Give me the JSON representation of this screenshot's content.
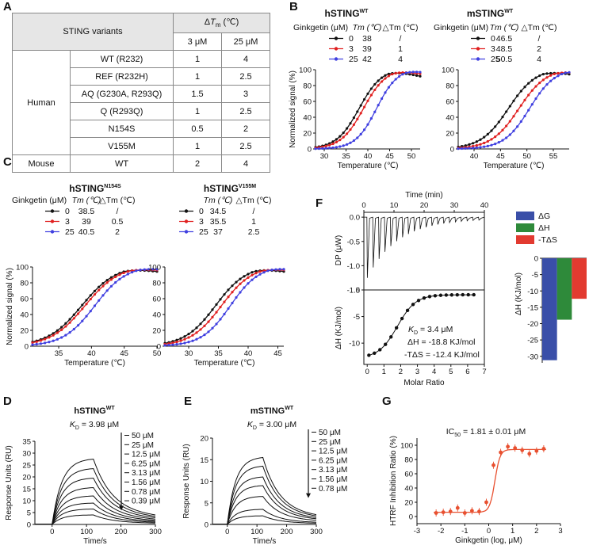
{
  "panels": {
    "A": "A",
    "B": "B",
    "C": "C",
    "D": "D",
    "E": "E",
    "F": "F",
    "G": "G"
  },
  "table": {
    "header_variant": "STING variants",
    "header_delta": "ΔTm (℃)",
    "conc": [
      "3 μM",
      "25 μM"
    ],
    "groups": [
      {
        "species": "Human",
        "rows": [
          {
            "variant": "WT (R232)",
            "v3": "1",
            "v25": "4"
          },
          {
            "variant": "REF (R232H)",
            "v3": "1",
            "v25": "2.5"
          },
          {
            "variant": "AQ (G230A, R293Q)",
            "v3": "1.5",
            "v25": "3"
          },
          {
            "variant": "Q (R293Q)",
            "v3": "1",
            "v25": "2.5"
          },
          {
            "variant": "N154S",
            "v3": "0.5",
            "v25": "2"
          },
          {
            "variant": "V155M",
            "v3": "1",
            "v25": "2.5"
          }
        ]
      },
      {
        "species": "Mouse",
        "rows": [
          {
            "variant": "WT",
            "v3": "2",
            "v25": "4"
          }
        ]
      }
    ]
  },
  "colors": {
    "c0": "#111111",
    "c3": "#e02020",
    "c25": "#4040e0",
    "dg": "#3a4fa8",
    "dh": "#2e8a3a",
    "tds": "#e23a30",
    "fit": "#e85030"
  },
  "tsa_legend": {
    "ligand_label": "Ginkgetin (μM)",
    "tm_label": "Tm (℃)",
    "dtm_label": "△Tm (℃)",
    "conc": [
      "0",
      "3",
      "25"
    ]
  },
  "chart_data": [
    {
      "id": "B1",
      "type": "line",
      "title": "hSTING",
      "title_sup": "WT",
      "xlabel": "Temperature (℃)",
      "ylabel": "Normalized signal (%)",
      "xlim": [
        28,
        52
      ],
      "ylim": [
        0,
        100
      ],
      "xticks": [
        30,
        35,
        40,
        45,
        50
      ],
      "yticks": [
        0,
        20,
        40,
        60,
        80,
        100
      ],
      "series": [
        {
          "name": "0",
          "tm": "38",
          "dtm": "/",
          "tmv": 38
        },
        {
          "name": "3",
          "tm": "39",
          "dtm": "1",
          "tmv": 39
        },
        {
          "name": "25",
          "tm": "42",
          "dtm": "4",
          "tmv": 42
        }
      ]
    },
    {
      "id": "B2",
      "type": "line",
      "title": "mSTING",
      "title_sup": "WT",
      "xlabel": "Temperature (℃)",
      "xlim": [
        37,
        58
      ],
      "ylim": [
        0,
        100
      ],
      "xticks": [
        40,
        45,
        50,
        55
      ],
      "yticks": [
        0,
        20,
        40,
        60,
        80,
        100
      ],
      "series": [
        {
          "name": "0",
          "tm": "46.5",
          "dtm": "/",
          "tmv": 46.5
        },
        {
          "name": "3",
          "tm": "48.5",
          "dtm": "2",
          "tmv": 48.5
        },
        {
          "name": "25",
          "tm": "50.5",
          "dtm": "4",
          "tmv": 50.5
        }
      ]
    },
    {
      "id": "C1",
      "type": "line",
      "title": "hSTING",
      "title_sup": "N154S",
      "xlabel": "Temperature (℃)",
      "ylabel": "Normalized signal (%)",
      "xlim": [
        31,
        50
      ],
      "ylim": [
        0,
        100
      ],
      "xticks": [
        35,
        40,
        45,
        50
      ],
      "yticks": [
        0,
        20,
        40,
        60,
        80,
        100
      ],
      "series": [
        {
          "name": "0",
          "tm": "38.5",
          "dtm": "/",
          "tmv": 38.5
        },
        {
          "name": "3",
          "tm": "39",
          "dtm": "0.5",
          "tmv": 39
        },
        {
          "name": "25",
          "tm": "40.5",
          "dtm": "2",
          "tmv": 40.5
        }
      ]
    },
    {
      "id": "C2",
      "type": "line",
      "title": "hSTING",
      "title_sup": "V155M",
      "xlabel": "Temperature (℃)",
      "xlim": [
        26,
        46
      ],
      "ylim": [
        0,
        100
      ],
      "xticks": [
        30,
        35,
        40,
        45
      ],
      "yticks": [
        0,
        20,
        40,
        60,
        80,
        100
      ],
      "series": [
        {
          "name": "0",
          "tm": "34.5",
          "dtm": "/",
          "tmv": 34.5
        },
        {
          "name": "3",
          "tm": "35.5",
          "dtm": "1",
          "tmv": 35.5
        },
        {
          "name": "25",
          "tm": "37",
          "dtm": "2.5",
          "tmv": 37
        }
      ]
    },
    {
      "id": "D",
      "type": "line",
      "title": "hSTING",
      "title_sup": "WT",
      "kd_label": "K",
      "kd_sub": "D",
      "kd_value": " = 3.98 μM",
      "xlabel": "Time/s",
      "ylabel": "Response Units (RU)",
      "xlim": [
        -50,
        300
      ],
      "ylim": [
        0,
        35
      ],
      "xticks": [
        0,
        100,
        200,
        300
      ],
      "yticks": [
        0,
        5,
        10,
        15,
        20,
        25,
        30,
        35
      ],
      "legend": [
        "50 μM",
        "25 μM",
        "12.5 μM",
        "6.25 μM",
        "3.13 μM",
        "1.56 μM",
        "0.78 μM",
        "0.39 μM"
      ],
      "peaks": [
        27.5,
        23.5,
        19.5,
        15.5,
        12,
        9,
        6.5,
        4
      ]
    },
    {
      "id": "E",
      "type": "line",
      "title": "mSTING",
      "title_sup": "WT",
      "kd_label": "K",
      "kd_sub": "D",
      "kd_value": " = 3.00 μM",
      "xlabel": "Time/s",
      "ylabel": "Response Units (RU)",
      "xlim": [
        -50,
        300
      ],
      "ylim": [
        0,
        20
      ],
      "xticks": [
        0,
        100,
        200,
        300
      ],
      "yticks": [
        0,
        5,
        10,
        15,
        20
      ],
      "legend": [
        "50 μM",
        "25 μM",
        "12.5 μM",
        "6.25 μM",
        "3.13 μM",
        "1.56 μM",
        "0.78 μM"
      ],
      "peaks": [
        15.5,
        13.5,
        11,
        9,
        6.5,
        3.5,
        2
      ]
    },
    {
      "id": "F_top",
      "type": "line",
      "xlabel": "Time (min)",
      "ylabel": "DP (μW)",
      "xlim": [
        0,
        40
      ],
      "ylim": [
        -1.5,
        0.1
      ],
      "xticks": [
        0,
        10,
        20,
        30,
        40
      ],
      "yticks": [
        0.0,
        -0.5,
        -1.0,
        -1.5
      ],
      "ytick_labels": [
        "0.0",
        "-0.5",
        "-1.0",
        "-1.5"
      ]
    },
    {
      "id": "F_bottom",
      "type": "scatter",
      "xlabel": "Molar Ratio",
      "ylabel": "ΔH (KJ/mol)",
      "xlim": [
        -0.2,
        7
      ],
      "ylim": [
        -14,
        0
      ],
      "xticks": [
        0,
        1,
        2,
        3,
        4,
        5,
        6,
        7
      ],
      "yticks": [
        0,
        -5,
        -10
      ],
      "annot": {
        "kd": "K",
        "kd_sub": "D",
        "kd_val": " = 3.4 μM",
        "dh": "ΔH = -18.8 KJ/mol",
        "tds": "-TΔS = -12.4 KJ/mol"
      }
    },
    {
      "id": "F_bar",
      "type": "bar",
      "ylabel": "ΔH (KJ/mol)",
      "categories": [
        "ΔG",
        "ΔH",
        "-TΔS"
      ],
      "values": [
        -31.2,
        -18.8,
        -12.4
      ],
      "ylim": [
        -32,
        0
      ],
      "yticks": [
        0,
        -5,
        -10,
        -15,
        -20,
        -25,
        -30
      ]
    },
    {
      "id": "G",
      "type": "scatter",
      "title": "IC",
      "title_sub": "50",
      "title_val": " = 1.81 ± 0.01 μM",
      "xlabel": "Ginkgetin (log, μM)",
      "ylabel": "HTRF Inhibition Ratio (%)",
      "xlim": [
        -3,
        3
      ],
      "ylim": [
        -10,
        110
      ],
      "xticks": [
        -3,
        -2,
        -1,
        0,
        1,
        2,
        3
      ],
      "yticks": [
        0,
        20,
        40,
        60,
        80,
        100
      ],
      "points": [
        [
          -2.2,
          5
        ],
        [
          -1.9,
          6
        ],
        [
          -1.6,
          7
        ],
        [
          -1.3,
          12
        ],
        [
          -1.0,
          5
        ],
        [
          -0.7,
          8
        ],
        [
          -0.4,
          7
        ],
        [
          -0.1,
          20
        ],
        [
          0.2,
          72
        ],
        [
          0.5,
          90
        ],
        [
          0.8,
          98
        ],
        [
          1.1,
          96
        ],
        [
          1.4,
          93
        ],
        [
          1.7,
          88
        ],
        [
          2.0,
          92
        ],
        [
          2.3,
          95
        ]
      ],
      "ic50_log": 0.258,
      "top": 94,
      "bottom": 6
    }
  ]
}
